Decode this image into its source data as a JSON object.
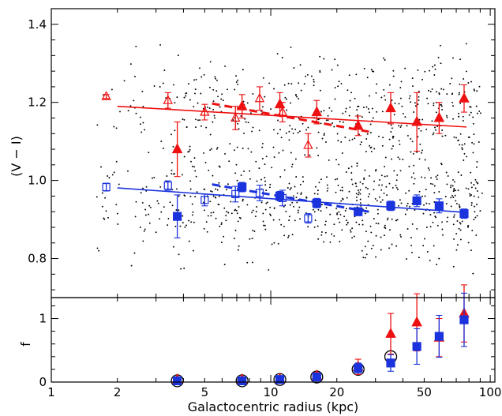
{
  "figure": {
    "xlabel": "Galactocentric radius (kpc)",
    "x_tick_labels": [
      "1",
      "2",
      "5",
      "10",
      "20",
      "50",
      "100"
    ],
    "colors": {
      "red": "#ee1111",
      "blue": "#1a33dd",
      "black": "#000000"
    }
  },
  "chart_data": [
    {
      "id": "top",
      "type": "scatter",
      "xscale": "log",
      "xlim": [
        1,
        105
      ],
      "ylim": [
        0.7,
        1.44
      ],
      "xlabel": "Galactocentric radius (kpc)",
      "ylabel": "(V − I)",
      "y_tick_labels": [
        "0.8",
        "1.0",
        "1.2",
        "1.4"
      ],
      "y_ticks": [
        0.8,
        1.0,
        1.2,
        1.4
      ],
      "grid": false,
      "series": [
        {
          "marker": "open-triangle",
          "color": "red",
          "x": [
            1.78,
            3.4,
            5.0,
            6.9,
            8.9,
            11.3,
            14.8
          ],
          "y": [
            1.215,
            1.205,
            1.175,
            1.16,
            1.21,
            1.175,
            1.09
          ],
          "err": [
            0.005,
            0.02,
            0.02,
            0.03,
            0.03,
            0.025,
            0.03
          ]
        },
        {
          "marker": "filled-triangle",
          "color": "red",
          "x": [
            3.75,
            7.4,
            11.0,
            16.2,
            25.0,
            35.2,
            46.3,
            58.5,
            76.0
          ],
          "y": [
            1.08,
            1.19,
            1.195,
            1.175,
            1.14,
            1.185,
            1.15,
            1.16,
            1.21
          ],
          "err": [
            0.07,
            0.03,
            0.03,
            0.03,
            0.025,
            0.04,
            0.075,
            0.04,
            0.035
          ]
        },
        {
          "marker": "open-square",
          "color": "blue",
          "x": [
            1.78,
            3.4,
            5.0,
            6.9,
            8.9,
            11.3,
            14.8
          ],
          "y": [
            0.983,
            0.987,
            0.95,
            0.965,
            0.968,
            0.955,
            0.903
          ],
          "err": [
            0.01,
            0.012,
            0.015,
            0.02,
            0.02,
            0.02,
            0.012
          ]
        },
        {
          "marker": "filled-square",
          "color": "blue",
          "x": [
            3.75,
            7.4,
            11.0,
            16.2,
            25.0,
            35.2,
            46.3,
            58.5,
            76.0
          ],
          "y": [
            0.908,
            0.983,
            0.96,
            0.942,
            0.92,
            0.935,
            0.948,
            0.935,
            0.915
          ],
          "err": [
            0.055,
            0.012,
            0.012,
            0.012,
            0.01,
            0.012,
            0.015,
            0.018,
            0.012
          ]
        }
      ],
      "fit_lines": [
        {
          "color": "red",
          "style": "solid",
          "x": [
            2.0,
            78.0
          ],
          "y": [
            1.19,
            1.137
          ]
        },
        {
          "color": "blue",
          "style": "solid",
          "x": [
            2.0,
            78.0
          ],
          "y": [
            0.981,
            0.918
          ]
        },
        {
          "color": "red",
          "style": "dashed",
          "x": [
            5.4,
            28.0
          ],
          "y": [
            1.197,
            1.125
          ]
        },
        {
          "color": "blue",
          "style": "dashed",
          "x": [
            5.4,
            28.0
          ],
          "y": [
            0.99,
            0.92
          ]
        }
      ]
    },
    {
      "id": "bottom",
      "type": "scatter",
      "xscale": "log",
      "xlim": [
        1,
        105
      ],
      "ylim": [
        0,
        1.33
      ],
      "xlabel": "Galactocentric radius (kpc)",
      "ylabel": "f",
      "y_tick_labels": [
        "0",
        "1"
      ],
      "y_ticks": [
        0,
        1
      ],
      "grid": false,
      "series": [
        {
          "marker": "open-circle",
          "color": "black",
          "x": [
            3.75,
            7.4,
            11.0,
            16.2,
            25.0,
            35.2
          ],
          "y": [
            0.02,
            0.02,
            0.04,
            0.08,
            0.2,
            0.4
          ]
        },
        {
          "marker": "filled-triangle",
          "color": "red",
          "x": [
            3.75,
            7.4,
            11.0,
            16.2,
            25.0,
            35.2,
            46.3,
            58.5,
            76.0
          ],
          "y": [
            0.04,
            0.04,
            0.05,
            0.1,
            0.24,
            0.76,
            0.94,
            0.7,
            1.08
          ],
          "err": [
            0.02,
            0.02,
            0.03,
            0.05,
            0.12,
            0.32,
            0.45,
            0.3,
            0.45
          ]
        },
        {
          "marker": "filled-square",
          "color": "blue",
          "x": [
            3.75,
            7.4,
            11.0,
            16.2,
            25.0,
            35.2,
            46.3,
            58.5,
            76.0
          ],
          "y": [
            0.02,
            0.02,
            0.04,
            0.08,
            0.22,
            0.3,
            0.56,
            0.72,
            0.98
          ],
          "err": [
            0.02,
            0.02,
            0.02,
            0.04,
            0.08,
            0.13,
            0.28,
            0.33,
            0.42
          ]
        }
      ]
    }
  ]
}
